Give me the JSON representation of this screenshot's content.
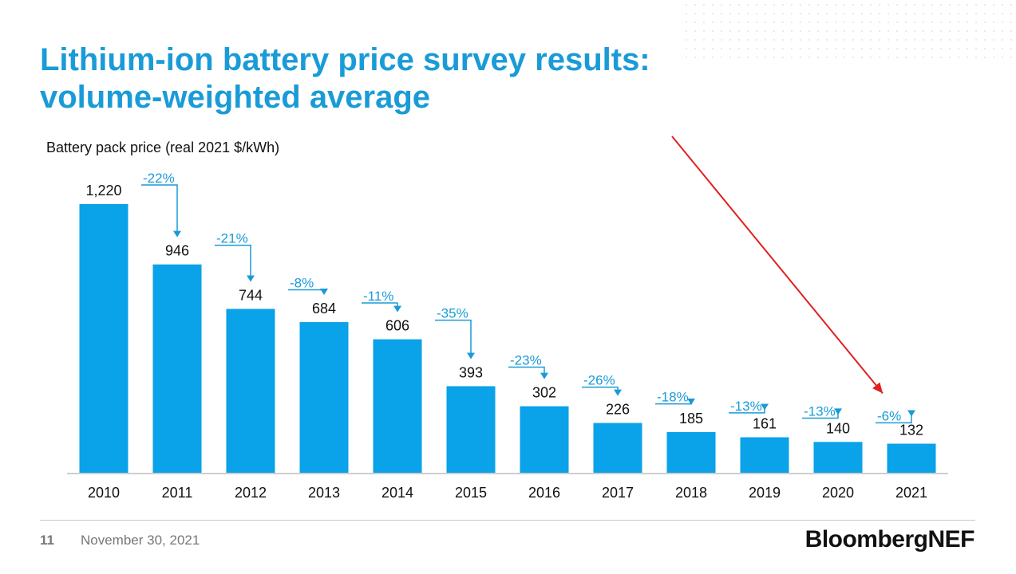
{
  "slide": {
    "title_line1": "Lithium-ion battery price survey results:",
    "title_line2": "volume-weighted average",
    "page_number": "11",
    "date": "November 30, 2021",
    "brand": "BloombergNEF"
  },
  "colors": {
    "title": "#1a9bd7",
    "bar": "#0aa2e8",
    "annotation": "#1a9bd7",
    "highlight_arrow": "#e02020",
    "text": "#111111"
  },
  "chart_data": {
    "type": "bar",
    "ylabel": "Battery pack price (real 2021 $/kWh)",
    "categories": [
      "2010",
      "2011",
      "2012",
      "2013",
      "2014",
      "2015",
      "2016",
      "2017",
      "2018",
      "2019",
      "2020",
      "2021"
    ],
    "values": [
      1220,
      946,
      744,
      684,
      606,
      393,
      302,
      226,
      185,
      161,
      140,
      132
    ],
    "value_labels": [
      "1,220",
      "946",
      "744",
      "684",
      "606",
      "393",
      "302",
      "226",
      "185",
      "161",
      "140",
      "132"
    ],
    "year_over_year_change": [
      "-22%",
      "-21%",
      "-8%",
      "-11%",
      "-35%",
      "-23%",
      "-26%",
      "-18%",
      "-13%",
      "-13%",
      "-6%"
    ],
    "ylim": [
      0,
      1220
    ],
    "grid": false,
    "legend": "none",
    "highlight": {
      "target_category": "2021",
      "note": "red arrow pointing to 2021 change"
    }
  }
}
